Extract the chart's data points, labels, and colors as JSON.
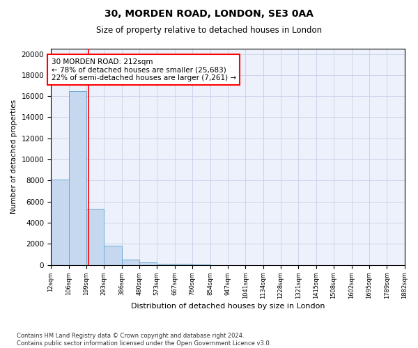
{
  "title1": "30, MORDEN ROAD, LONDON, SE3 0AA",
  "title2": "Size of property relative to detached houses in London",
  "xlabel": "Distribution of detached houses by size in London",
  "ylabel": "Number of detached properties",
  "bar_values": [
    8100,
    16500,
    5300,
    1800,
    500,
    250,
    120,
    80,
    50,
    0,
    0,
    0,
    0,
    0,
    0,
    0,
    0,
    0,
    0,
    0
  ],
  "bin_edges": [
    12,
    106,
    199,
    293,
    386,
    480,
    573,
    667,
    760,
    854,
    947,
    1041,
    1134,
    1228,
    1321,
    1415,
    1508,
    1602,
    1695,
    1789,
    1882
  ],
  "bar_color": "#c5d8ef",
  "bar_edge_color": "#6aabd2",
  "red_line_x": 212,
  "annotation_line1": "30 MORDEN ROAD: 212sqm",
  "annotation_line2": "← 78% of detached houses are smaller (25,683)",
  "annotation_line3": "22% of semi-detached houses are larger (7,261) →",
  "annotation_box_color": "white",
  "annotation_box_edge_color": "red",
  "ylim": [
    0,
    20500
  ],
  "yticks": [
    0,
    2000,
    4000,
    6000,
    8000,
    10000,
    12000,
    14000,
    16000,
    18000,
    20000
  ],
  "footer_line1": "Contains HM Land Registry data © Crown copyright and database right 2024.",
  "footer_line2": "Contains public sector information licensed under the Open Government Licence v3.0.",
  "background_color": "#edf1fb",
  "grid_color": "#c8cfe8",
  "fig_width": 6.0,
  "fig_height": 5.0,
  "dpi": 100
}
